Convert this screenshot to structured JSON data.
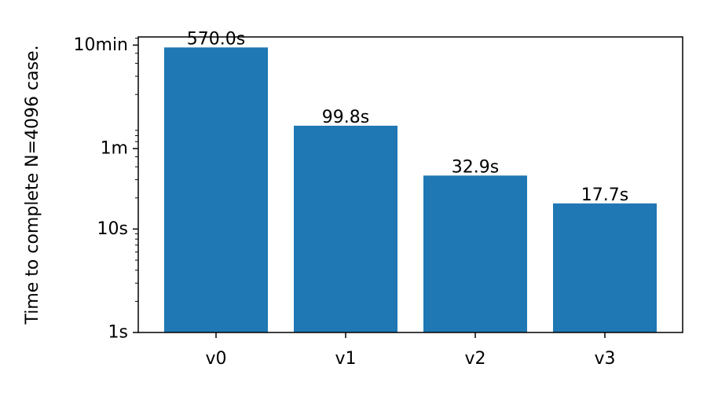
{
  "chart_data": {
    "type": "bar",
    "categories": [
      "v0",
      "v1",
      "v2",
      "v3"
    ],
    "values": [
      570.0,
      99.8,
      32.9,
      17.7
    ],
    "unit": "s",
    "data_labels": [
      "570.0s",
      "99.8s",
      "32.9s",
      "17.7s"
    ],
    "ylabel": "Time to complete N=4096 case.",
    "yscale": "log",
    "ylim": [
      1,
      720
    ],
    "yticks": [
      {
        "value": 1,
        "label": "1s"
      },
      {
        "value": 10,
        "label": "10s"
      },
      {
        "value": 60,
        "label": "1m"
      },
      {
        "value": 600,
        "label": "10min"
      }
    ],
    "bar_color": "#1f77b4",
    "grid": false,
    "legend": false
  }
}
